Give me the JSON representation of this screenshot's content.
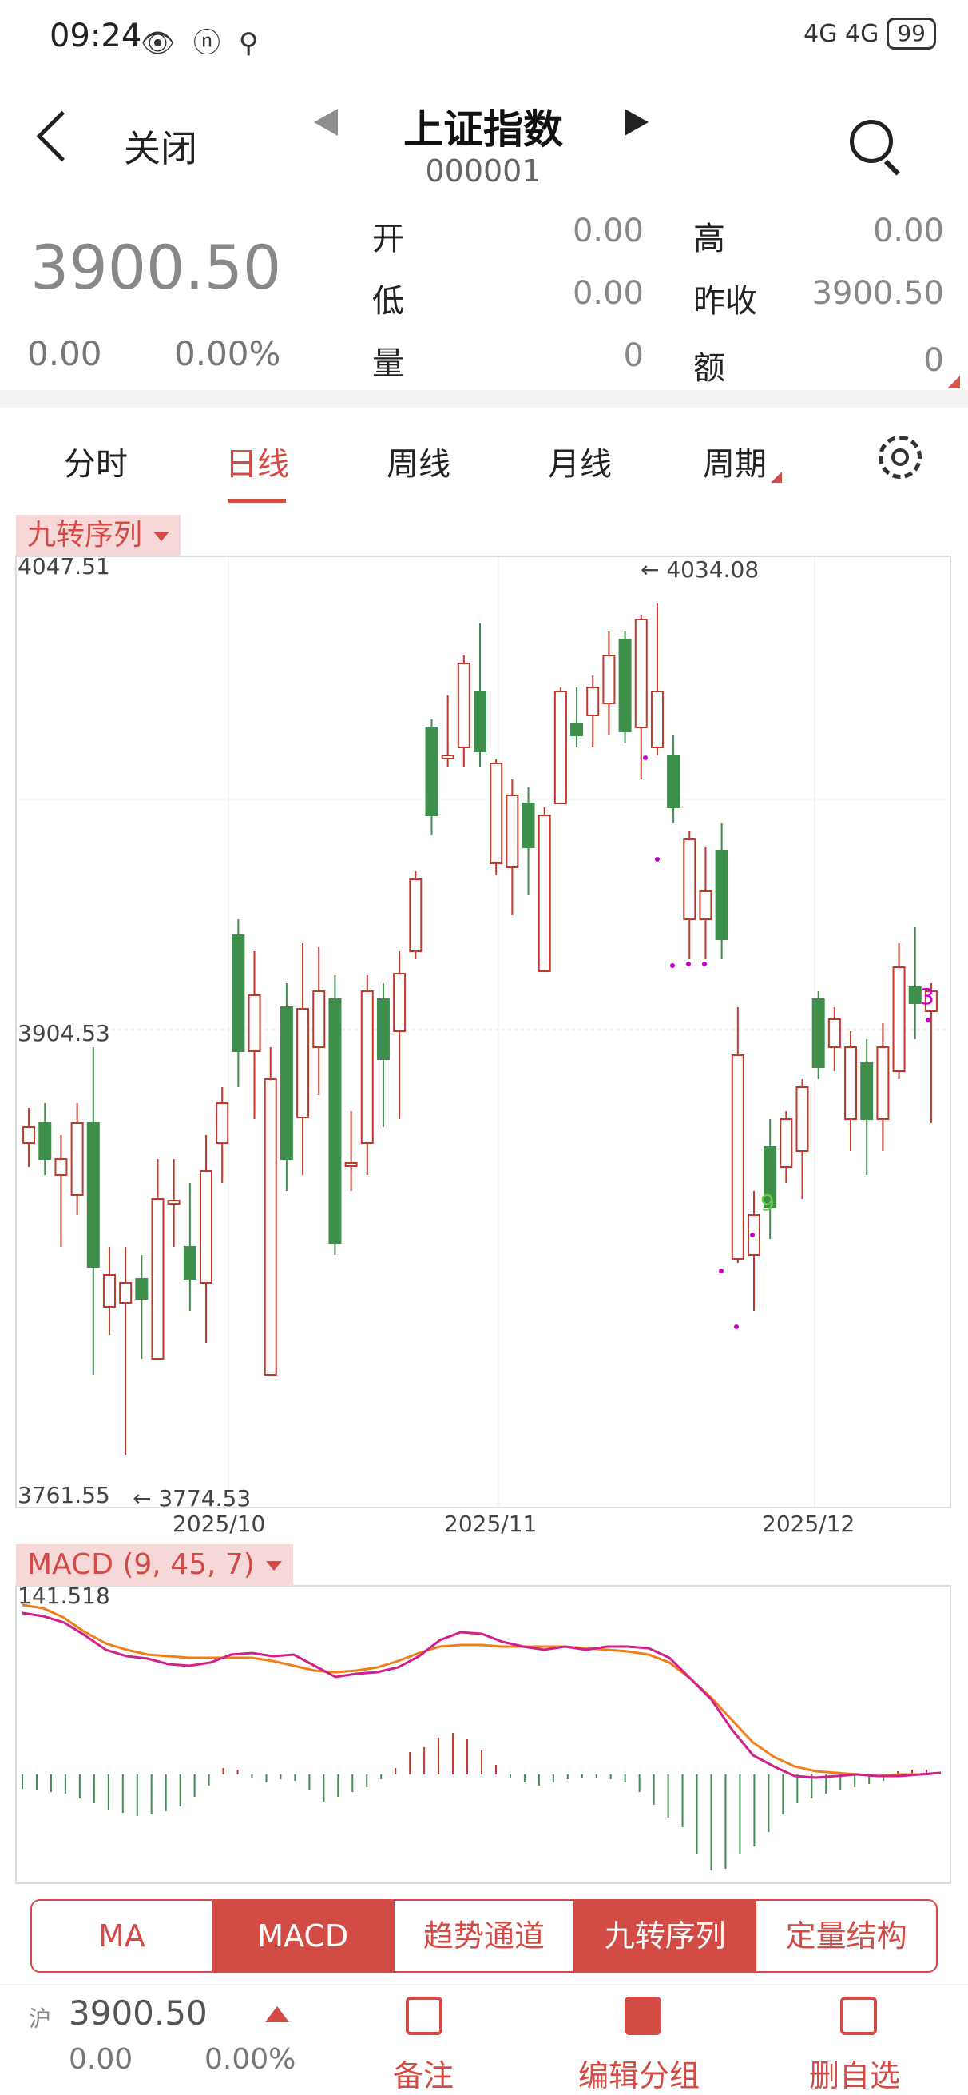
{
  "status_bar": {
    "time": "09:24",
    "battery": "99",
    "network": "4G 4G"
  },
  "header": {
    "back_label": "关闭",
    "stock_name": "上证指数",
    "stock_code": "000001"
  },
  "quote": {
    "price": "3900.50",
    "change": "0.00",
    "change_pct": "0.00%",
    "fields": [
      {
        "label": "开",
        "value": "0.00"
      },
      {
        "label": "高",
        "value": "0.00"
      },
      {
        "label": "低",
        "value": "0.00"
      },
      {
        "label": "昨收",
        "value": "3900.50"
      },
      {
        "label": "量",
        "value": "0"
      },
      {
        "label": "额",
        "value": "0"
      }
    ]
  },
  "period_tabs": [
    "分时",
    "日线",
    "周线",
    "月线",
    "周期"
  ],
  "active_tab": "日线",
  "main_indicator": "九转序列",
  "sub_indicator": "MACD (9, 45, 7)",
  "kline": {
    "y_top_label": "4047.51",
    "y_mid_label": "3904.53",
    "y_bottom_label": "3761.55",
    "high_marker": "← 4034.08",
    "low_marker": "← 3774.53",
    "x_labels": [
      "2025/10",
      "2025/11",
      "2025/12"
    ],
    "nine_labels": [
      "9",
      "3"
    ],
    "colors": {
      "up": "#c0392b",
      "down": "#3e8e4c",
      "dot": "#cc00cc",
      "nine": "#66cc44"
    }
  },
  "macd": {
    "top_label": "141.518",
    "colors": {
      "dif": "#d0208c",
      "dea": "#f07f1a",
      "pos": "#c0392b",
      "neg": "#3e8e4c"
    }
  },
  "indicator_buttons": [
    {
      "label": "MA",
      "active": false
    },
    {
      "label": "MACD",
      "active": true
    },
    {
      "label": "趋势通道",
      "active": false
    },
    {
      "label": "九转序列",
      "active": true
    },
    {
      "label": "定量结构",
      "active": false
    }
  ],
  "footer": {
    "market": "沪",
    "price": "3900.50",
    "change": "0.00",
    "change_pct": "0.00%",
    "actions": [
      "备注",
      "编辑分组",
      "删自选"
    ]
  }
}
